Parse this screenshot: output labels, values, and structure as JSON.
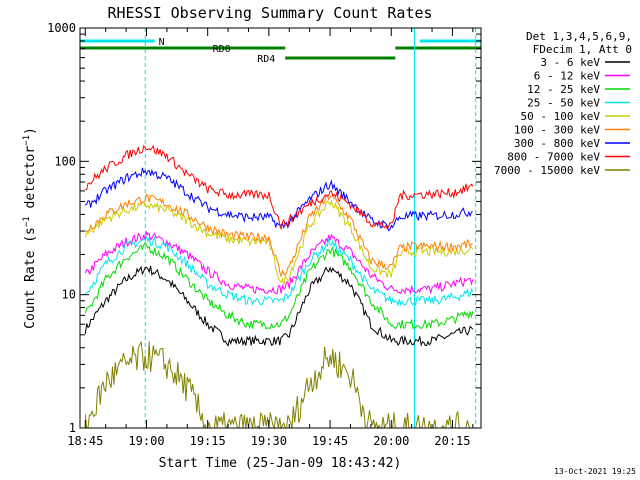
{
  "chart_data": {
    "type": "line",
    "title": "RHESSI Observing Summary Count Rates",
    "xlabel": "Start Time (25-Jan-09 18:43:42)",
    "ylabel": "Count Rate (s⁻¹ detector⁻¹)",
    "footer": "13-Oct-2021 19:25",
    "yscale": "log",
    "xlim": [
      "18:43:42",
      "20:22:00"
    ],
    "ylim": [
      1,
      1000
    ],
    "x_ticks": [
      "18:45",
      "19:00",
      "19:15",
      "19:30",
      "19:45",
      "20:00",
      "20:15"
    ],
    "y_ticks": [
      "1",
      "10",
      "100",
      "1000"
    ],
    "legend_header": [
      "Det 1,3,4,5,6,9,",
      "FDecim 1, Att 0"
    ],
    "legend_position": "right",
    "flags": [
      {
        "label": "N",
        "color": "#00e5ee",
        "spans": [
          [
            "18:43:42",
            "19:02:00"
          ],
          [
            "20:07:00",
            "20:22:00"
          ]
        ]
      },
      {
        "label": "RD0",
        "color": "#008000",
        "spans": [
          [
            "18:43:42",
            "19:34:00"
          ],
          [
            "20:01:00",
            "20:22:00"
          ]
        ]
      },
      {
        "label": "RD4",
        "color": "#008000",
        "spans": [
          [
            "19:34:00",
            "20:01:00"
          ]
        ]
      }
    ],
    "vertical_lines": [
      {
        "time": "18:43:42",
        "color": "#00e5ee",
        "style": "solid"
      },
      {
        "time": "18:59:42",
        "color": "#00e5ee",
        "style": "dashed"
      },
      {
        "time": "20:05:42",
        "color": "#00e5ee",
        "style": "solid"
      },
      {
        "time": "20:20:42",
        "color": "#00e5ee",
        "style": "dashed"
      }
    ],
    "x": [
      "18:45",
      "18:50",
      "18:55",
      "19:00",
      "19:05",
      "19:10",
      "19:15",
      "19:20",
      "19:25",
      "19:30",
      "19:33",
      "19:35",
      "19:40",
      "19:45",
      "19:50",
      "19:55",
      "20:00",
      "20:02",
      "20:05",
      "20:10",
      "20:15",
      "20:20"
    ],
    "series": [
      {
        "name": "3 - 6 keV",
        "color": "#000000",
        "values": [
          5.5,
          9,
          13,
          16,
          13,
          9,
          6,
          4.5,
          4.5,
          4.5,
          4.5,
          5,
          11,
          16,
          12,
          6,
          4.5,
          4.5,
          4.5,
          4.5,
          5,
          5.5
        ]
      },
      {
        "name": "6 - 12 keV",
        "color": "#ff00ff",
        "values": [
          14,
          20,
          25,
          28,
          25,
          20,
          15,
          12,
          11,
          11,
          11,
          12,
          20,
          27,
          21,
          14,
          11,
          11,
          11,
          11,
          12,
          13
        ]
      },
      {
        "name": "12 - 25 keV",
        "color": "#00dd00",
        "values": [
          7,
          13,
          19,
          23,
          19,
          13,
          9,
          7,
          6,
          6,
          6,
          7,
          15,
          22,
          16,
          9,
          6,
          6,
          6,
          6,
          6.5,
          7.5
        ]
      },
      {
        "name": "25 - 50 keV",
        "color": "#00e5ee",
        "values": [
          10,
          17,
          23,
          26,
          23,
          17,
          12,
          10,
          9,
          9,
          9,
          10,
          18,
          25,
          18,
          11,
          9,
          9,
          9,
          9,
          9.5,
          10.5
        ]
      },
      {
        "name": "50 - 100 keV",
        "color": "#cccc00",
        "values": [
          28,
          37,
          43,
          47,
          43,
          36,
          29,
          26,
          25,
          25,
          12,
          14,
          33,
          51,
          32,
          16,
          14,
          20,
          21,
          21,
          21,
          22
        ]
      },
      {
        "name": "100 - 300 keV",
        "color": "#ff8000",
        "values": [
          30,
          40,
          48,
          53,
          48,
          40,
          32,
          28,
          27,
          27,
          14,
          16,
          38,
          56,
          37,
          18,
          16,
          22,
          23,
          23,
          23,
          24
        ]
      },
      {
        "name": "300 - 800 keV",
        "color": "#0000ff",
        "values": [
          45,
          60,
          75,
          85,
          75,
          58,
          45,
          40,
          38,
          38,
          32,
          35,
          52,
          68,
          50,
          36,
          32,
          38,
          39,
          39,
          40,
          42
        ]
      },
      {
        "name": "800 - 7000 keV",
        "color": "#ff0000",
        "values": [
          65,
          88,
          110,
          130,
          110,
          80,
          62,
          56,
          56,
          56,
          33,
          36,
          48,
          58,
          48,
          35,
          32,
          55,
          56,
          57,
          58,
          65
        ]
      },
      {
        "name": "7000 - 15000 keV",
        "color": "#808000",
        "values": [
          1,
          2.2,
          3,
          3.5,
          3,
          2,
          1,
          1,
          1,
          1,
          1,
          1,
          2.2,
          3.5,
          2.5,
          1,
          1,
          1,
          1,
          1,
          1,
          1
        ]
      }
    ]
  }
}
